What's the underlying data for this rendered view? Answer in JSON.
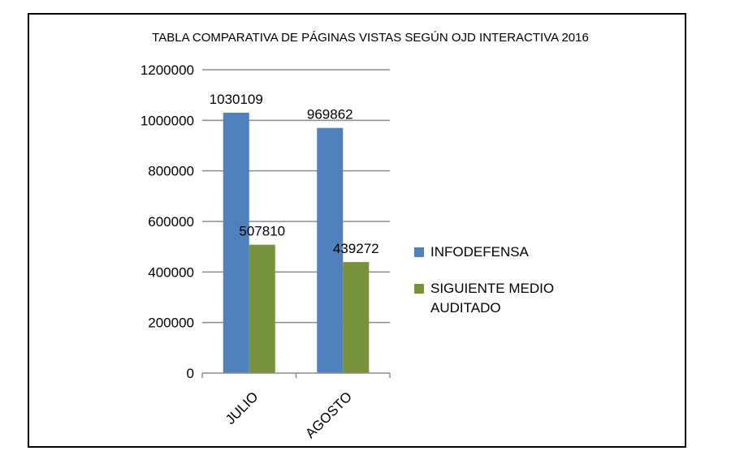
{
  "chart_data": {
    "type": "bar",
    "title": "TABLA COMPARATIVA DE PÁGINAS VISTAS SEGÚN OJD INTERACTIVA 2016",
    "categories": [
      "JULIO",
      "AGOSTO"
    ],
    "series": [
      {
        "name": "INFODEFENSA",
        "values": [
          1030109,
          969862
        ],
        "labels": [
          "1030109",
          "969862"
        ],
        "color": "#4f81bd"
      },
      {
        "name": "SIGUIENTE MEDIO AUDITADO",
        "values": [
          507810,
          439272
        ],
        "labels": [
          "507810",
          "439272"
        ],
        "color": "#77933c"
      }
    ],
    "legend": [
      {
        "lines": [
          "INFODEFENSA"
        ]
      },
      {
        "lines": [
          "SIGUIENTE MEDIO",
          "AUDITADO"
        ]
      }
    ],
    "y_ticks": [
      "0",
      "200000",
      "400000",
      "600000",
      "800000",
      "1000000",
      "1200000"
    ],
    "ylim": [
      0,
      1200000
    ],
    "xlabel": "",
    "ylabel": "",
    "grid": true,
    "legend_position": "right"
  }
}
